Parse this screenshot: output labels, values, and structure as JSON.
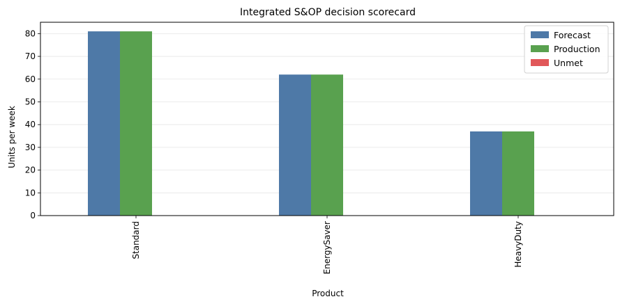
{
  "chart_data": {
    "type": "bar",
    "title": "Integrated S&OP decision scorecard",
    "xlabel": "Product",
    "ylabel": "Units per week",
    "categories": [
      "Standard",
      "EnergySaver",
      "HeavyDuty"
    ],
    "series": [
      {
        "name": "Forecast",
        "values": [
          81,
          62,
          37
        ],
        "color": "#4e79a7"
      },
      {
        "name": "Production",
        "values": [
          81,
          62,
          37
        ],
        "color": "#59a14f"
      },
      {
        "name": "Unmet",
        "values": [
          0,
          0,
          0
        ],
        "color": "#e15759"
      }
    ],
    "ylim": [
      0,
      85
    ],
    "yticks": [
      0,
      10,
      20,
      30,
      40,
      50,
      60,
      70,
      80
    ],
    "grid": "horizontal",
    "legend": "top-right"
  }
}
